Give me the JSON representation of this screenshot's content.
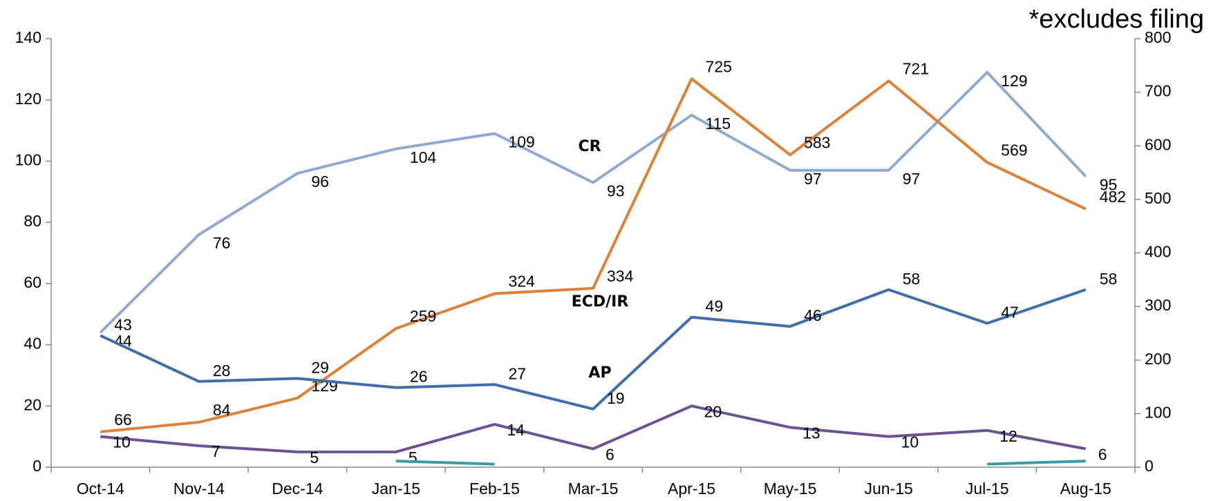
{
  "chart_data": {
    "type": "line",
    "annotation": "*excludes filing",
    "categories": [
      "Oct-14",
      "Nov-14",
      "Dec-14",
      "Jan-15",
      "Feb-15",
      "Mar-15",
      "Apr-15",
      "May-15",
      "Jun-15",
      "Jul-15",
      "Aug-15"
    ],
    "series": [
      {
        "name": "CR",
        "color": "#8faad1",
        "values": [
          44,
          76,
          96,
          104,
          109,
          93,
          115,
          97,
          97,
          129,
          95
        ]
      },
      {
        "name": "ECD/IR",
        "color": "#dd8136",
        "axis": "y2",
        "values": [
          66,
          84,
          129,
          259,
          324,
          334,
          725,
          583,
          721,
          569,
          482
        ]
      },
      {
        "name": "AP",
        "color": "#3f6ea8",
        "values": [
          43,
          28,
          29,
          26,
          27,
          19,
          49,
          46,
          58,
          47,
          58
        ]
      },
      {
        "color": "#6d5192",
        "values": [
          10,
          7,
          5,
          5,
          14,
          6,
          20,
          13,
          10,
          12,
          6
        ]
      },
      {
        "color": "#3a9aaa",
        "values": [
          null,
          null,
          null,
          2,
          1,
          null,
          null,
          null,
          null,
          1,
          2
        ]
      }
    ],
    "ylim": [
      0,
      140
    ],
    "yticks": [
      0,
      20,
      40,
      60,
      80,
      100,
      120,
      140
    ],
    "y2lim": [
      0,
      800
    ],
    "y2ticks": [
      0,
      100,
      200,
      300,
      400,
      500,
      600,
      700,
      800
    ],
    "grid": false
  }
}
